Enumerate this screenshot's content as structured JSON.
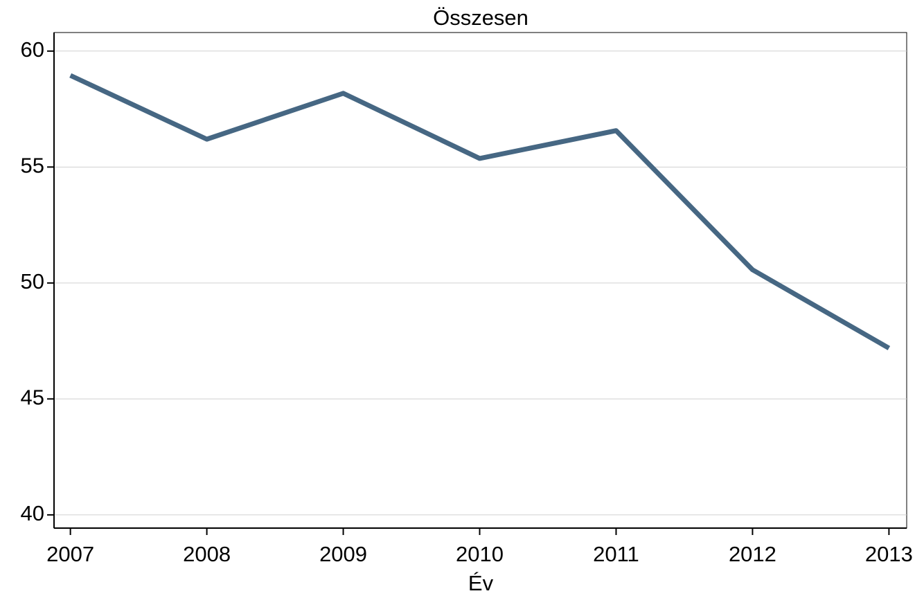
{
  "chart_data": {
    "type": "line",
    "title": "Összesen",
    "x_label": "Év",
    "x": [
      2007,
      2008,
      2009,
      2010,
      2011,
      2012,
      2013
    ],
    "series": [
      {
        "name": "Összesen",
        "color": "#466783",
        "values": [
          58.95,
          56.2,
          58.18,
          55.37,
          56.57,
          50.57,
          47.19
        ]
      }
    ],
    "xlim": [
      2006.88,
      2013.13
    ],
    "xticks": [
      2007,
      2008,
      2009,
      2010,
      2011,
      2012,
      2013
    ],
    "ylim": [
      39.43,
      60.8
    ],
    "yticks": [
      40,
      45,
      50,
      55,
      60
    ],
    "grid": true
  }
}
